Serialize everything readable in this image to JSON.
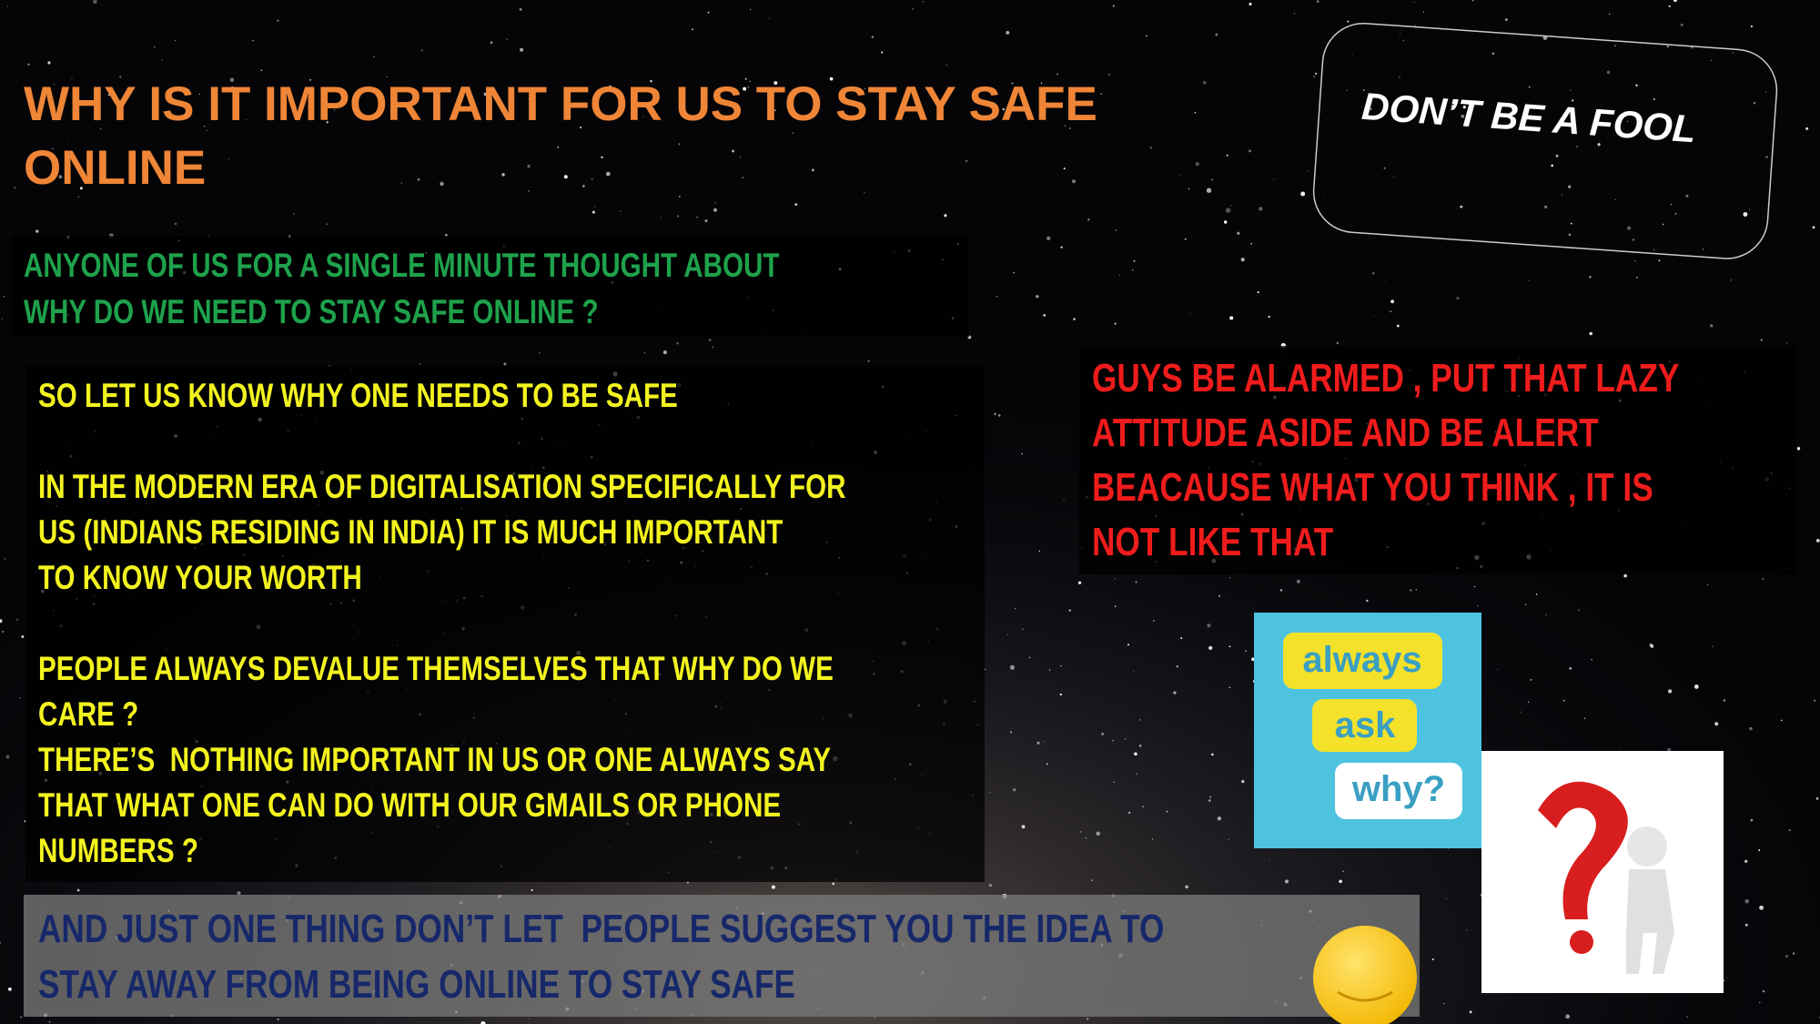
{
  "title": [
    "WHY IS IT IMPORTANT FOR US TO STAY SAFE",
    "ONLINE"
  ],
  "intro": [
    "ANYONE OF US FOR A SINGLE MINUTE THOUGHT ABOUT",
    "WHY DO WE NEED TO STAY SAFE ONLINE ?"
  ],
  "body": [
    [
      "SO LET US KNOW WHY ONE NEEDS TO BE SAFE"
    ],
    [
      "IN THE MODERN ERA OF DIGITALISATION SPECIFICALLY FOR",
      "US (INDIANS RESIDING IN INDIA) IT IS MUCH IMPORTANT",
      "TO KNOW YOUR WORTH"
    ],
    [
      "PEOPLE ALWAYS DEVALUE THEMSELVES THAT WHY DO WE",
      "CARE ?",
      "THERE’S  NOTHING IMPORTANT IN US OR ONE ALWAYS SAY",
      "THAT WHAT ONE CAN DO WITH OUR GMAILS OR PHONE",
      "NUMBERS ?"
    ]
  ],
  "badge": "DON’T BE A FOOL",
  "alert": [
    "GUYS BE ALARMED , PUT THAT LAZY",
    "ATTITUDE ASIDE AND BE ALERT",
    "BEACAUSE WHAT YOU THINK , IT IS",
    "NOT LIKE THAT"
  ],
  "ask_image": [
    "always",
    "ask",
    "why?"
  ],
  "note": [
    "AND JUST ONE THING DON’T LET  PEOPLE SUGGEST YOU THE IDEA TO",
    "STAY AWAY FROM BEING ONLINE TO STAY SAFE"
  ]
}
